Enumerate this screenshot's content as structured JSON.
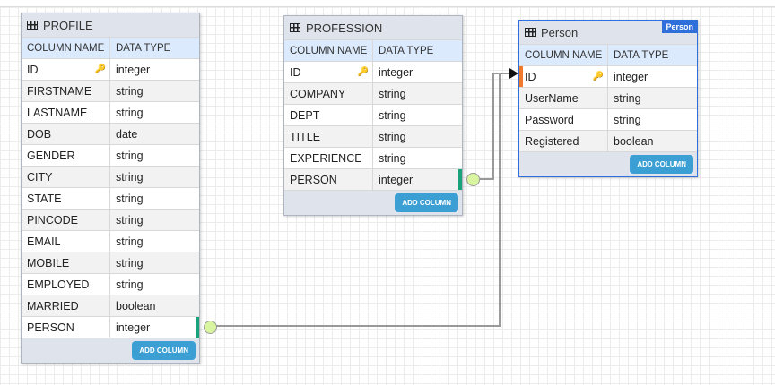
{
  "colors": {
    "accent": "#2e6fd9",
    "fk_marker": "#1aa37a",
    "pk_marker": "#f07a2e",
    "button": "#3b9fd3"
  },
  "column_headers": {
    "name": "COLUMN NAME",
    "type": "DATA TYPE"
  },
  "add_column_label": "ADD COLUMN",
  "tables": [
    {
      "title": "PROFILE",
      "rows": [
        [
          "ID",
          "integer"
        ],
        [
          "FIRSTNAME",
          "string"
        ],
        [
          "LASTNAME",
          "string"
        ],
        [
          "DOB",
          "date"
        ],
        [
          "GENDER",
          "string"
        ],
        [
          "CITY",
          "string"
        ],
        [
          "STATE",
          "string"
        ],
        [
          "PINCODE",
          "string"
        ],
        [
          "EMAIL",
          "string"
        ],
        [
          "MOBILE",
          "string"
        ],
        [
          "EMPLOYED",
          "string"
        ],
        [
          "MARRIED",
          "boolean"
        ],
        [
          "PERSON",
          "integer"
        ]
      ]
    },
    {
      "title": "PROFESSION",
      "rows": [
        [
          "ID",
          "integer"
        ],
        [
          "COMPANY",
          "string"
        ],
        [
          "DEPT",
          "string"
        ],
        [
          "TITLE",
          "string"
        ],
        [
          "EXPERIENCE",
          "string"
        ],
        [
          "PERSON",
          "integer"
        ]
      ]
    },
    {
      "title": "Person",
      "badge": "Person",
      "rows": [
        [
          "ID",
          "integer"
        ],
        [
          "UserName",
          "string"
        ],
        [
          "Password",
          "string"
        ],
        [
          "Registered",
          "boolean"
        ]
      ]
    }
  ],
  "relations": [
    {
      "from": "PROFILE.PERSON",
      "to": "Person.ID"
    },
    {
      "from": "PROFESSION.PERSON",
      "to": "Person.ID"
    }
  ]
}
